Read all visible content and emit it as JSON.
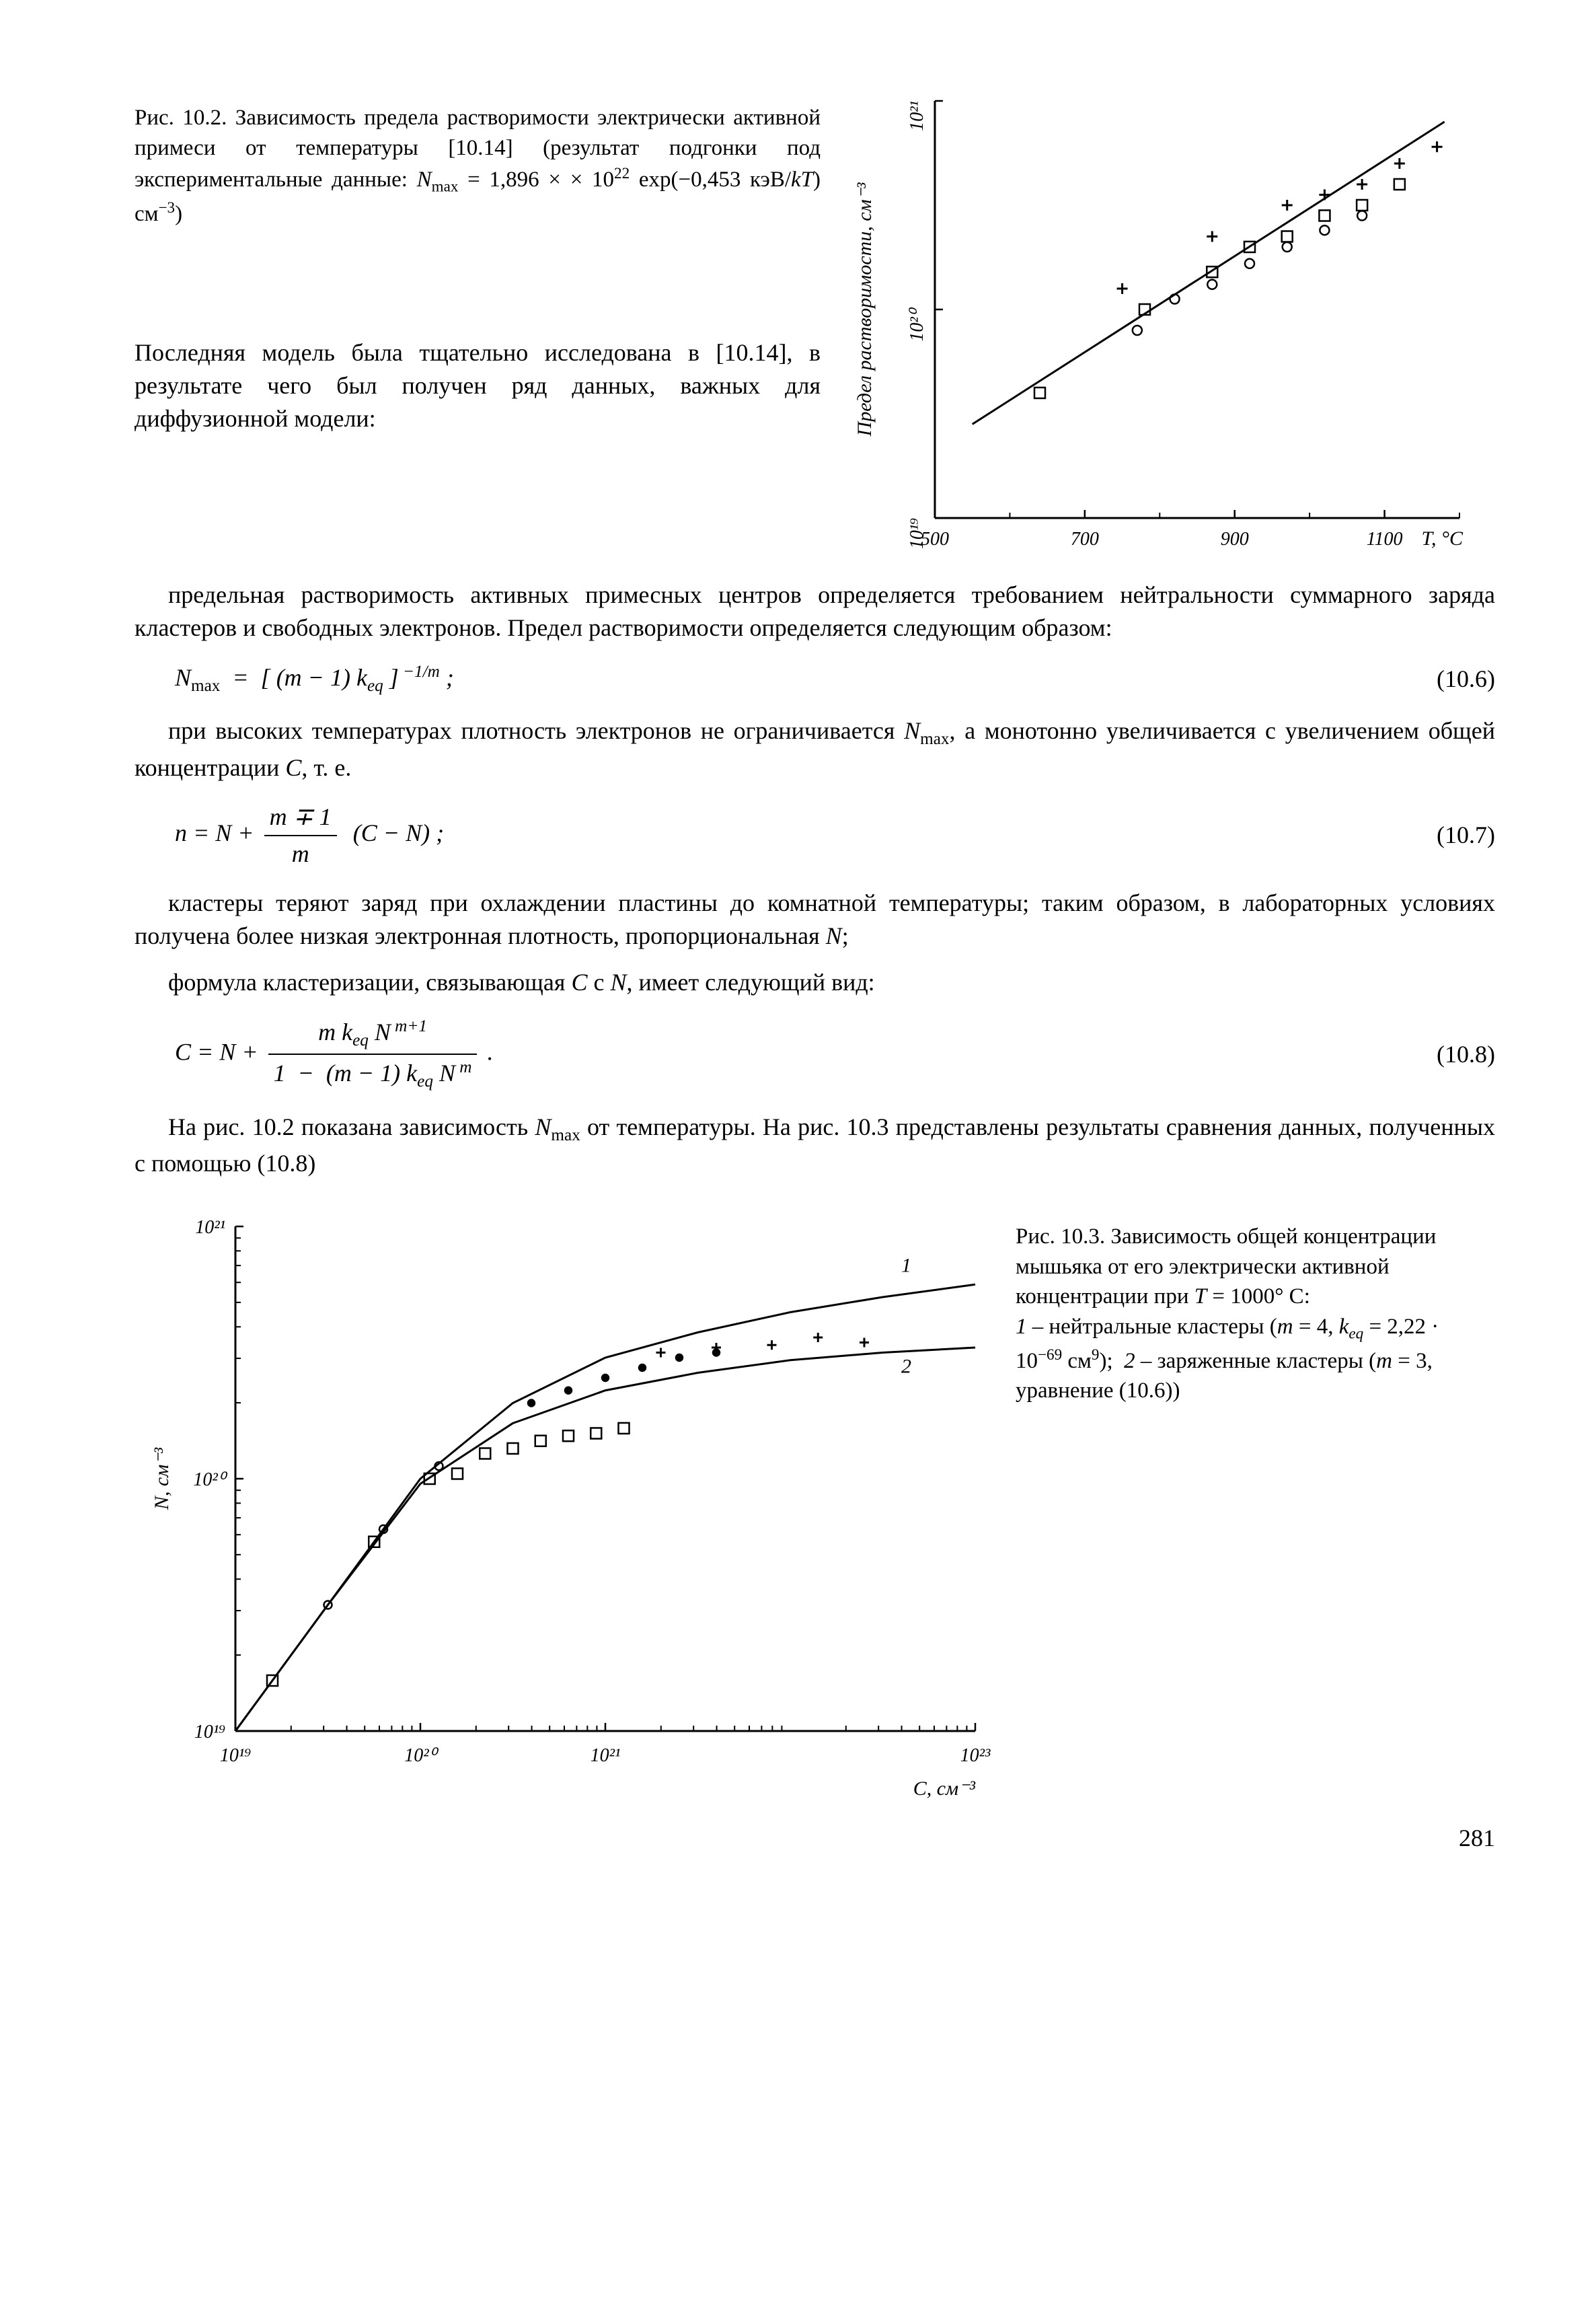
{
  "figure_10_2": {
    "caption_html": "Рис. 10.2. Зависимость предела растворимости электрически активной примеси от температуры [10.14] (результат подгонки под экспериментальные данные: <i>N</i><sub>max</sub> = 1,896 × × 10<sup>22</sup> exp(−0,453 кэВ/<i>kT</i>) см<sup>−3</sup>)",
    "chart": {
      "type": "scatter",
      "background_color": "#ffffff",
      "axis_color": "#000000",
      "x_label": "T, °C",
      "y_label": "Предел растворимости, см⁻³",
      "y_label_fontstyle": "italic",
      "x_ticks": [
        500,
        700,
        900,
        1100
      ],
      "x_range": [
        500,
        1200
      ],
      "y_ticks_labels": [
        "10¹⁹",
        "10²⁰",
        "10²¹"
      ],
      "y_ticks_values": [
        19,
        20,
        21
      ],
      "y_range": [
        19,
        21
      ],
      "y_scale": "log",
      "fit_line": [
        [
          550,
          19.45
        ],
        [
          1180,
          20.9
        ]
      ],
      "line_width": 3,
      "series": [
        {
          "marker": "square",
          "size": 16,
          "stroke": "#000000",
          "fill": "none",
          "points": [
            [
              640,
              19.6
            ],
            [
              780,
              20.0
            ],
            [
              870,
              20.18
            ],
            [
              920,
              20.3
            ],
            [
              970,
              20.35
            ],
            [
              1020,
              20.45
            ],
            [
              1070,
              20.5
            ],
            [
              1120,
              20.6
            ]
          ]
        },
        {
          "marker": "circle",
          "size": 14,
          "stroke": "#000000",
          "fill": "none",
          "points": [
            [
              770,
              19.9
            ],
            [
              820,
              20.05
            ],
            [
              870,
              20.12
            ],
            [
              920,
              20.22
            ],
            [
              970,
              20.3
            ],
            [
              1020,
              20.38
            ],
            [
              1070,
              20.45
            ]
          ]
        },
        {
          "marker": "plus",
          "size": 16,
          "stroke": "#000000",
          "points": [
            [
              750,
              20.1
            ],
            [
              870,
              20.35
            ],
            [
              970,
              20.5
            ],
            [
              1020,
              20.55
            ],
            [
              1070,
              20.6
            ],
            [
              1120,
              20.7
            ],
            [
              1170,
              20.78
            ]
          ]
        }
      ],
      "tick_fontsize": 28,
      "label_fontsize": 30
    }
  },
  "body": {
    "p1": "Последняя модель была тщательно исследована в [10.14], в результате чего был получен ряд данных, важных для диффузионной модели:",
    "p2": "предельная растворимость активных примесных центров определяется требованием нейтральности суммарного заряда кластеров и свободных электронов. Предел растворимости определяется следующим образом:",
    "eq1_num": "(10.6)",
    "p3_html": "при высоких температурах плотность электронов не ограничивается <i>N</i><sub>max</sub>, а монотонно увеличивается с увеличением общей концентрации <i>C</i>, т. е.",
    "eq2_num": "(10.7)",
    "p4_html": "кластеры теряют заряд при охлаждении пластины до комнатной температуры; таким образом, в лабораторных условиях получена более низкая электронная плотность, пропорциональная <i>N</i>;",
    "p5_html": "формула кластеризации, связывающая <i>C</i> с <i>N</i>, имеет следующий вид:",
    "eq3_num": "(10.8)",
    "p6_html": "На рис. 10.2 показана зависимость <i>N</i><sub>max</sub> от температуры. На рис. 10.3 представлены результаты сравнения данных, полученных с помощью (10.8)"
  },
  "figure_10_3": {
    "caption_html": "Рис. 10.3. Зависимость общей концентрации мышьяка от его электрически активной концентрации при <i>T</i> = 1000° С:<br><i>1</i> – нейтральные кластеры (<i>m</i> = 4, <i>k<sub>eq</sub></i> = 2,22 · 10<sup>−69</sup> см<sup>9</sup>); &nbsp;<i>2</i> – заряженные кластеры (<i>m</i> = 3, уравнение (10.6))",
    "chart": {
      "type": "line",
      "background_color": "#ffffff",
      "axis_color": "#000000",
      "x_label": "C, см⁻³",
      "y_label": "N, см⁻³",
      "x_ticks_labels": [
        "10¹⁹",
        "10²⁰",
        "10²¹",
        "10²³"
      ],
      "x_ticks_values": [
        19,
        20,
        21,
        23
      ],
      "x_range": [
        19,
        23
      ],
      "y_ticks_labels": [
        "10¹⁹",
        "10²⁰",
        "10²¹"
      ],
      "y_ticks_values": [
        19,
        20,
        21
      ],
      "y_range": [
        19,
        21
      ],
      "x_scale": "log",
      "y_scale": "log",
      "line_width": 3,
      "curves": [
        {
          "label": "1",
          "points": [
            [
              19.0,
              19.0
            ],
            [
              19.5,
              19.5
            ],
            [
              20.0,
              20.0
            ],
            [
              20.5,
              20.3
            ],
            [
              21.0,
              20.48
            ],
            [
              21.5,
              20.58
            ],
            [
              22.0,
              20.66
            ],
            [
              22.5,
              20.72
            ],
            [
              23.0,
              20.77
            ]
          ]
        },
        {
          "label": "2",
          "points": [
            [
              19.0,
              19.0
            ],
            [
              19.5,
              19.5
            ],
            [
              20.0,
              19.98
            ],
            [
              20.5,
              20.22
            ],
            [
              21.0,
              20.35
            ],
            [
              21.5,
              20.42
            ],
            [
              22.0,
              20.47
            ],
            [
              22.5,
              20.5
            ],
            [
              23.0,
              20.52
            ]
          ]
        }
      ],
      "curve_labels": [
        {
          "text": "1",
          "x": 22.6,
          "y": 20.82
        },
        {
          "text": "2",
          "x": 22.6,
          "y": 20.42
        }
      ],
      "series": [
        {
          "marker": "square",
          "size": 16,
          "stroke": "#000000",
          "fill": "none",
          "points": [
            [
              19.2,
              19.2
            ],
            [
              19.75,
              19.75
            ],
            [
              20.05,
              20.0
            ],
            [
              20.2,
              20.02
            ],
            [
              20.35,
              20.1
            ],
            [
              20.5,
              20.12
            ],
            [
              20.65,
              20.15
            ],
            [
              20.8,
              20.17
            ],
            [
              20.95,
              20.18
            ],
            [
              21.1,
              20.2
            ]
          ]
        },
        {
          "marker": "circle",
          "size": 12,
          "stroke": "#000000",
          "fill": "none",
          "points": [
            [
              19.5,
              19.5
            ],
            [
              19.8,
              19.8
            ],
            [
              20.1,
              20.05
            ]
          ]
        },
        {
          "marker": "dot",
          "size": 10,
          "stroke": "#000000",
          "fill": "#000000",
          "points": [
            [
              20.6,
              20.3
            ],
            [
              20.8,
              20.35
            ],
            [
              21.0,
              20.4
            ],
            [
              21.2,
              20.44
            ],
            [
              21.4,
              20.48
            ],
            [
              21.6,
              20.5
            ]
          ]
        },
        {
          "marker": "plus",
          "size": 14,
          "stroke": "#000000",
          "points": [
            [
              21.3,
              20.5
            ],
            [
              21.6,
              20.52
            ],
            [
              21.9,
              20.53
            ],
            [
              22.15,
              20.56
            ],
            [
              22.4,
              20.54
            ]
          ]
        }
      ],
      "tick_fontsize": 28,
      "label_fontsize": 30
    }
  },
  "page_number": "281"
}
